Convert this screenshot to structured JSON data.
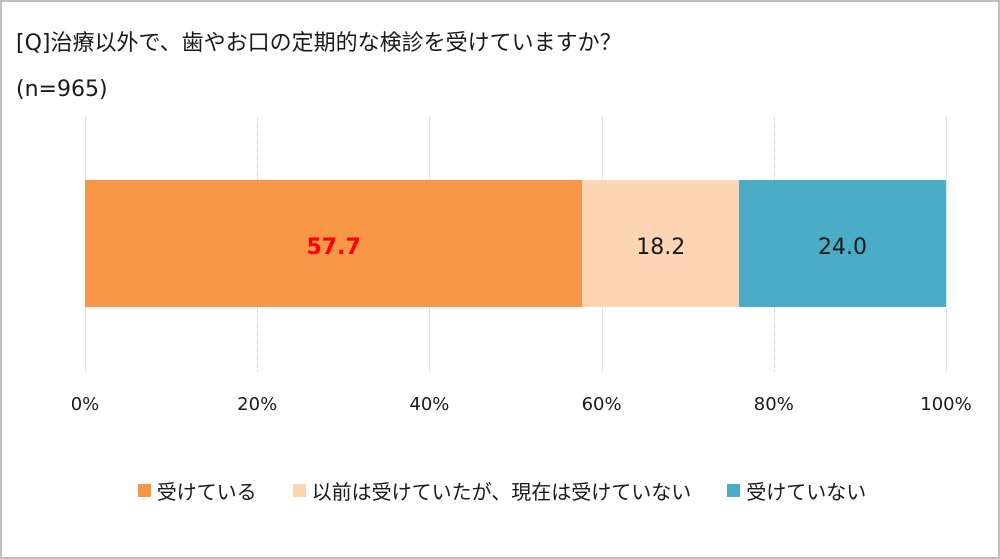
{
  "header": {
    "title": "[Q]治療以外で、歯やお口の定期的な検診を受けていますか？",
    "subtitle": "(n=965)"
  },
  "axis": {
    "ticks": [
      "0%",
      "20%",
      "40%",
      "60%",
      "80%",
      "100%"
    ]
  },
  "segments": [
    {
      "label": "受けている",
      "value": "57.7",
      "color": "#f79646",
      "text_color": "#ff0000"
    },
    {
      "label": "以前は受けていたが、現在は受けていない",
      "value": "18.2",
      "color": "#fcd5b5",
      "text_color": "#1a1a1a"
    },
    {
      "label": "受けていない",
      "value": "24.0",
      "color": "#4bacc6",
      "text_color": "#1a1a1a"
    }
  ],
  "legend": {
    "items": [
      {
        "label": "受けている",
        "color": "#f79646"
      },
      {
        "label": "以前は受けていたが、現在は受けていない",
        "color": "#fcd5b5"
      },
      {
        "label": "受けていない",
        "color": "#4bacc6"
      }
    ]
  },
  "chart_data": {
    "type": "bar",
    "orientation": "horizontal",
    "stacked": "100%",
    "title": "[Q]治療以外で、歯やお口の定期的な検診を受けていますか？",
    "subtitle": "(n=965)",
    "categories": [
      ""
    ],
    "series": [
      {
        "name": "受けている",
        "values": [
          57.7
        ],
        "color": "#f79646"
      },
      {
        "name": "以前は受けていたが、現在は受けていない",
        "values": [
          18.2
        ],
        "color": "#fcd5b5"
      },
      {
        "name": "受けていない",
        "values": [
          24.0
        ],
        "color": "#4bacc6"
      }
    ],
    "xlabel": "",
    "ylabel": "",
    "xlim": [
      0,
      100
    ],
    "xticks": [
      "0%",
      "20%",
      "40%",
      "60%",
      "80%",
      "100%"
    ],
    "grid": true,
    "legend_position": "bottom",
    "annotations": [
      "57.7 highlighted in bold red"
    ]
  }
}
